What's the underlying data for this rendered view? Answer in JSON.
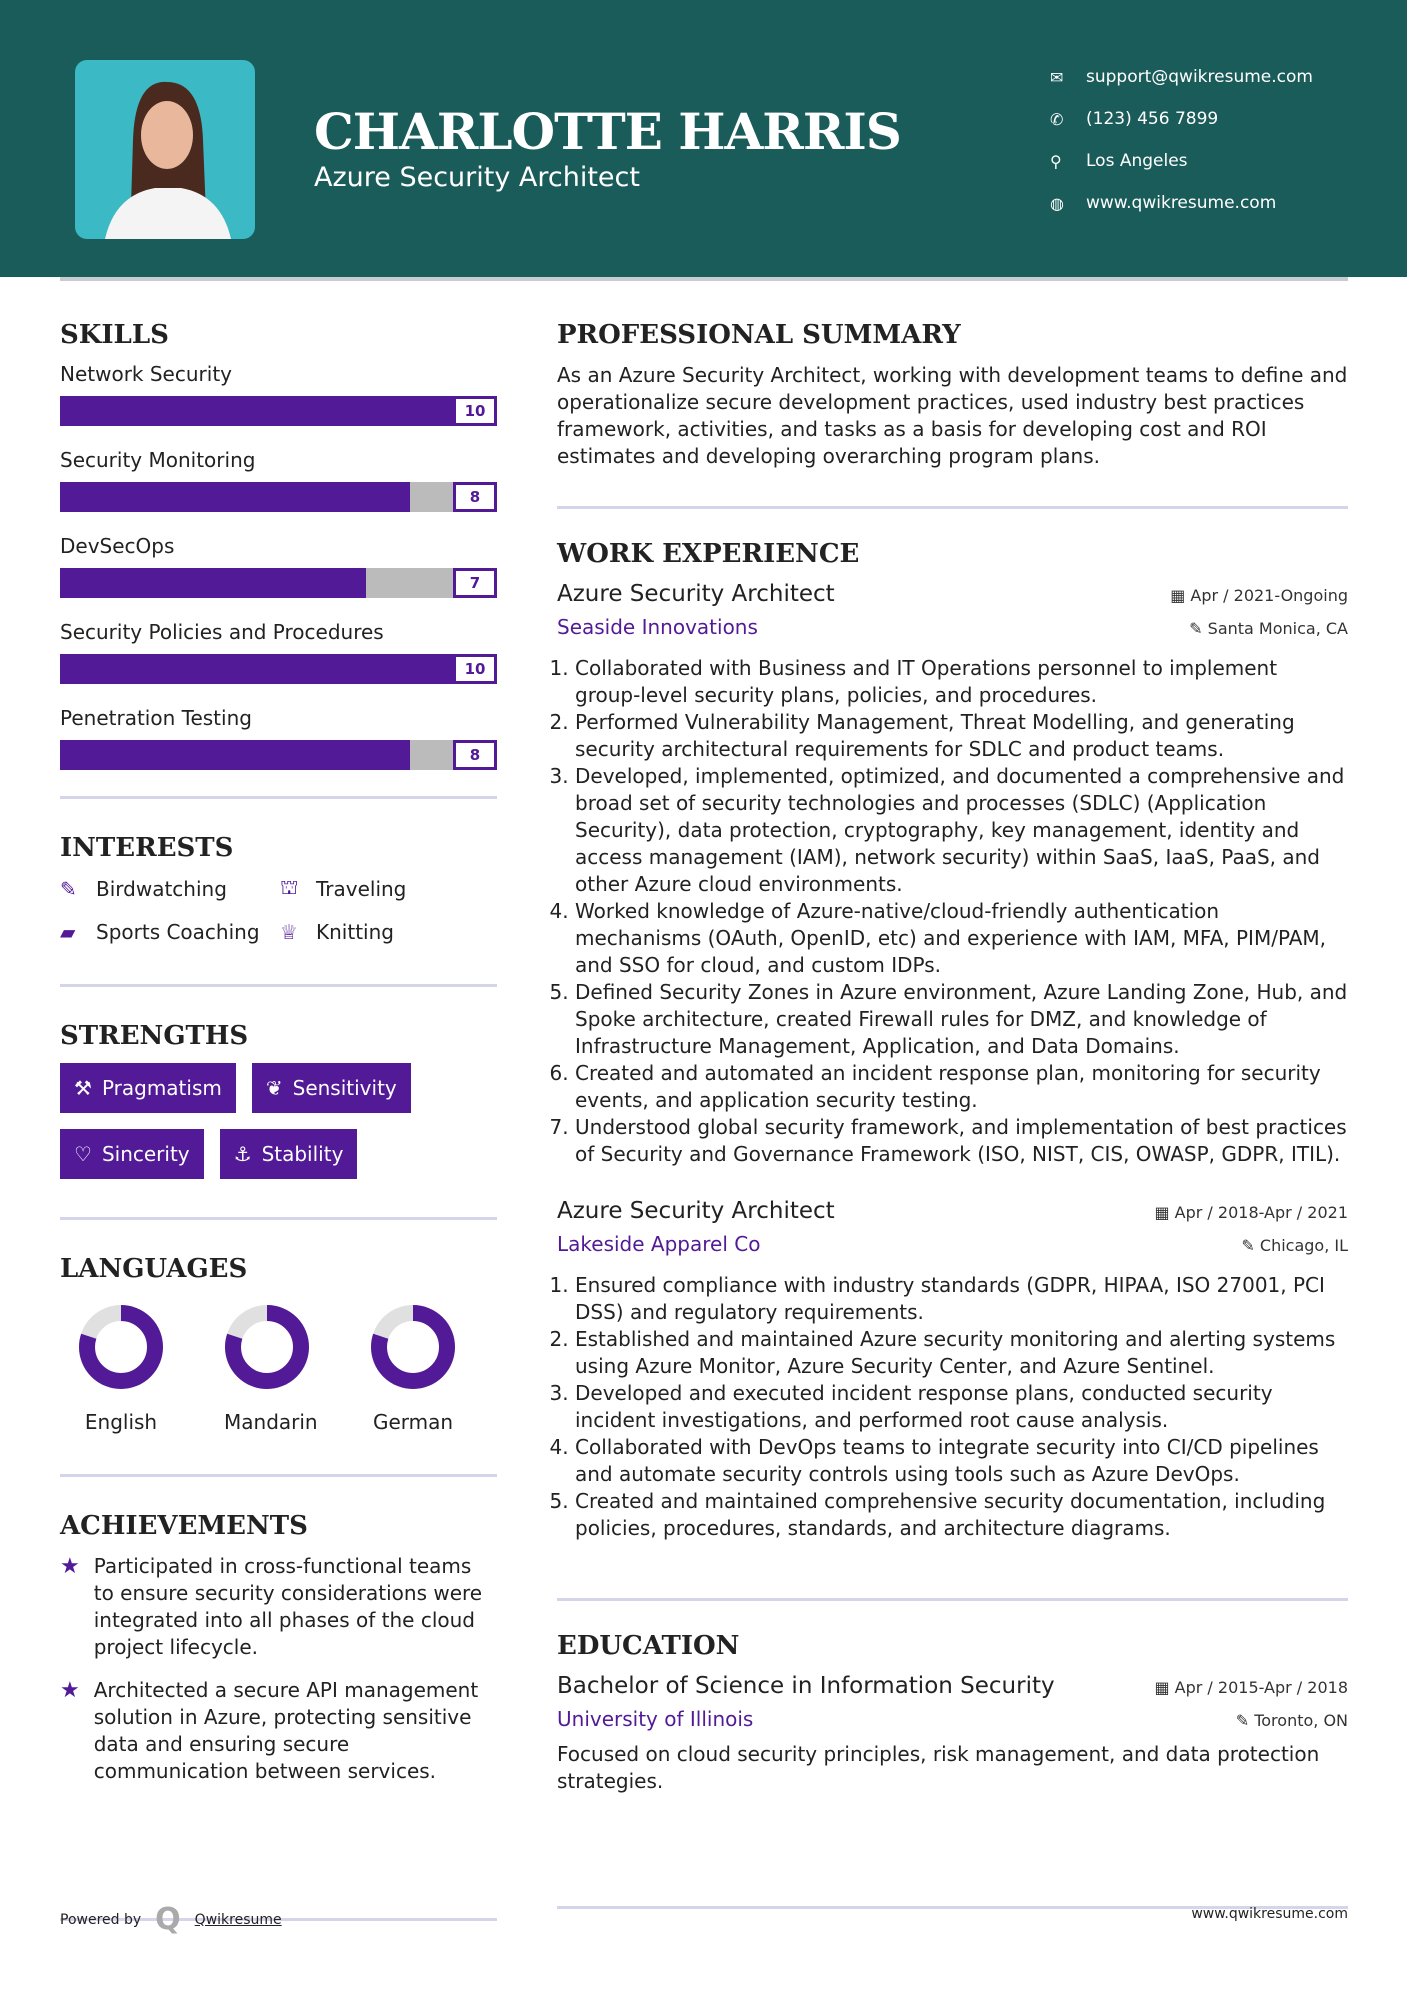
{
  "header": {
    "name": "CHARLOTTE HARRIS",
    "title": "Azure Security Architect",
    "contacts": [
      {
        "icon": "envelope-icon",
        "text": "support@qwikresume.com"
      },
      {
        "icon": "phone-icon",
        "text": "(123) 456 7899"
      },
      {
        "icon": "map-pin-icon",
        "text": "Los Angeles"
      },
      {
        "icon": "globe-icon",
        "text": "www.qwikresume.com"
      }
    ]
  },
  "colors": {
    "header": "#1a5c5a",
    "accent": "#521a96",
    "bar_empty": "#bbbbbb"
  },
  "skills": {
    "heading": "SKILLS",
    "items": [
      {
        "label": "Network Security",
        "value": "10"
      },
      {
        "label": "Security Monitoring",
        "value": "8"
      },
      {
        "label": "DevSecOps",
        "value": "7"
      },
      {
        "label": "Security Policies and Procedures",
        "value": "10"
      },
      {
        "label": "Penetration Testing",
        "value": "8"
      }
    ],
    "max": 10
  },
  "interests": {
    "heading": "INTERESTS",
    "items": [
      {
        "icon": "edit-icon",
        "label": "Birdwatching"
      },
      {
        "icon": "binoculars-icon",
        "label": "Traveling"
      },
      {
        "icon": "briefcase-icon",
        "label": "Sports Coaching"
      },
      {
        "icon": "trophy-icon",
        "label": "Knitting"
      }
    ]
  },
  "strengths": {
    "heading": "STRENGTHS",
    "items": [
      {
        "icon": "gavel-icon",
        "label": "Pragmatism"
      },
      {
        "icon": "leaf-icon",
        "label": "Sensitivity"
      },
      {
        "icon": "heart-icon",
        "label": "Sincerity"
      },
      {
        "icon": "anchor-icon",
        "label": "Stability"
      }
    ]
  },
  "languages": {
    "heading": "LANGUAGES",
    "items": [
      {
        "label": "English",
        "level": 0.8
      },
      {
        "label": "Mandarin",
        "level": 0.8
      },
      {
        "label": "German",
        "level": 0.8
      }
    ]
  },
  "achievements": {
    "heading": "ACHIEVEMENTS",
    "items": [
      "Participated in cross-functional teams to ensure security considerations were integrated into all phases of the cloud project lifecycle.",
      "Architected a secure API management solution in Azure, protecting sensitive data and ensuring secure communication between services."
    ]
  },
  "summary": {
    "heading": "PROFESSIONAL SUMMARY",
    "text": "As an Azure Security Architect, working with development teams to define and operationalize secure development practices, used industry best practices framework, activities, and tasks as a basis for developing cost and ROI estimates and developing overarching program plans."
  },
  "experience": {
    "heading": "WORK EXPERIENCE",
    "jobs": [
      {
        "title": "Azure Security Architect",
        "date": "Apr / 2021-Ongoing",
        "company": "Seaside Innovations",
        "location": "Santa Monica, CA",
        "bullets": [
          "Collaborated with Business and IT Operations personnel to implement group-level security plans, policies, and procedures.",
          "Performed Vulnerability Management, Threat Modelling, and generating security architectural requirements for SDLC and product teams.",
          "Developed, implemented, optimized, and documented a comprehensive and broad set of security technologies and processes (SDLC) (Application Security), data protection, cryptography, key management, identity and access management (IAM), network security) within SaaS, IaaS, PaaS, and other Azure cloud environments.",
          "Worked knowledge of Azure-native/cloud-friendly authentication mechanisms (OAuth, OpenID, etc) and experience with IAM, MFA, PIM/PAM, and SSO for cloud, and custom IDPs.",
          "Defined Security Zones in Azure environment, Azure Landing Zone, Hub, and Spoke architecture, created Firewall rules for DMZ, and knowledge of Infrastructure Management, Application, and Data Domains.",
          "Created and automated an incident response plan, monitoring for security events, and application security testing.",
          "Understood global security framework, and implementation of best practices of Security and Governance Framework (ISO, NIST, CIS, OWASP, GDPR, ITIL)."
        ]
      },
      {
        "title": "Azure Security Architect",
        "date": "Apr / 2018-Apr / 2021",
        "company": "Lakeside Apparel Co",
        "location": "Chicago, IL",
        "bullets": [
          "Ensured compliance with industry standards (GDPR, HIPAA, ISO 27001, PCI DSS) and regulatory requirements.",
          "Established and maintained Azure security monitoring and alerting systems using Azure Monitor, Azure Security Center, and Azure Sentinel.",
          "Developed and executed incident response plans, conducted security incident investigations, and performed root cause analysis.",
          "Collaborated with DevOps teams to integrate security into CI/CD pipelines and automate security controls using tools such as Azure DevOps.",
          "Created and maintained comprehensive security documentation, including policies, procedures, standards, and architecture diagrams."
        ]
      }
    ]
  },
  "education": {
    "heading": "EDUCATION",
    "degree": "Bachelor of Science in Information Security",
    "date": "Apr / 2015-Apr / 2018",
    "school": "University of Illinois",
    "location": "Toronto, ON",
    "text": "Focused on cloud security principles, risk management, and data protection strategies."
  },
  "footer": {
    "powered_by": "Powered by",
    "brand": "Qwikresume",
    "url": "www.qwikresume.com"
  }
}
